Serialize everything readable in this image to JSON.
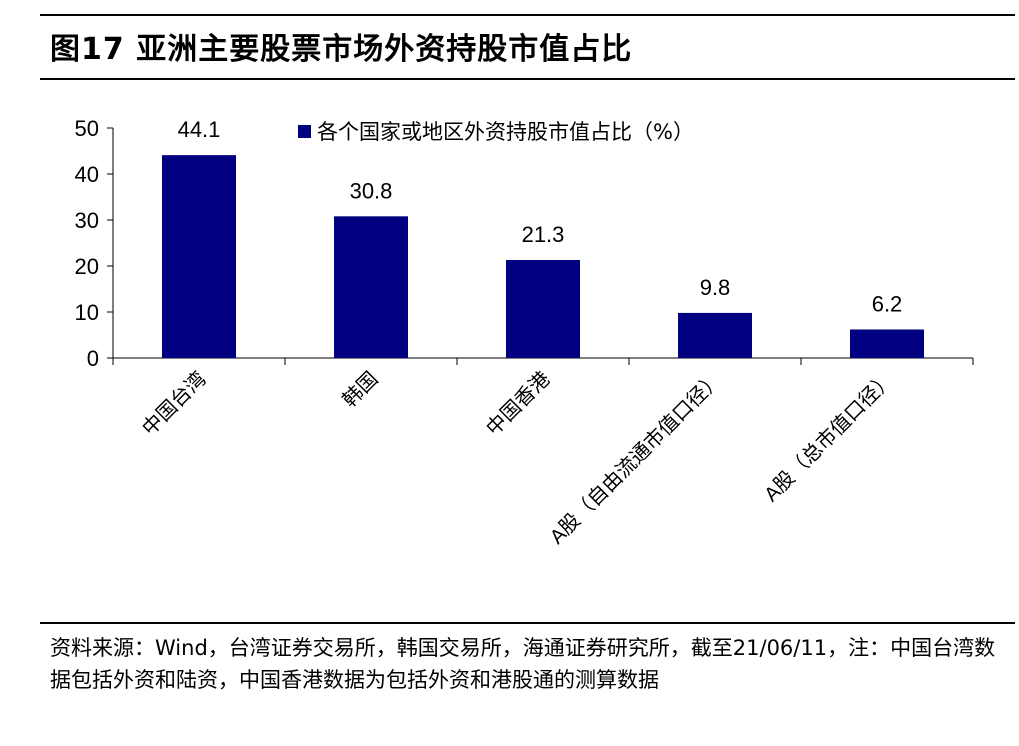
{
  "figure": {
    "title": "图17 亚洲主要股票市场外资持股市值占比",
    "source_note": "资料来源：Wind，台湾证券交易所，韩国交易所，海通证券研究所，截至21/06/11，注：中国台湾数据包括外资和陆资，中国香港数据为包括外资和港股通的测算数据"
  },
  "chart_data": {
    "type": "bar",
    "title": "",
    "xlabel": "",
    "ylabel": "",
    "categories": [
      "中国台湾",
      "韩国",
      "中国香港",
      "A股（自由流通市值口径）",
      "A股（总市值口径）"
    ],
    "series": [
      {
        "name": "各个国家或地区外资持股市值占比（%）",
        "values": [
          44.1,
          30.8,
          21.3,
          9.8,
          6.2
        ],
        "color": "#000080"
      }
    ],
    "data_labels": [
      "44.1",
      "30.8",
      "21.3",
      "9.8",
      "6.2"
    ],
    "ylim": [
      0,
      50
    ],
    "yticks": [
      0,
      10,
      20,
      30,
      40,
      50
    ],
    "grid": false,
    "legend_position": "top"
  }
}
